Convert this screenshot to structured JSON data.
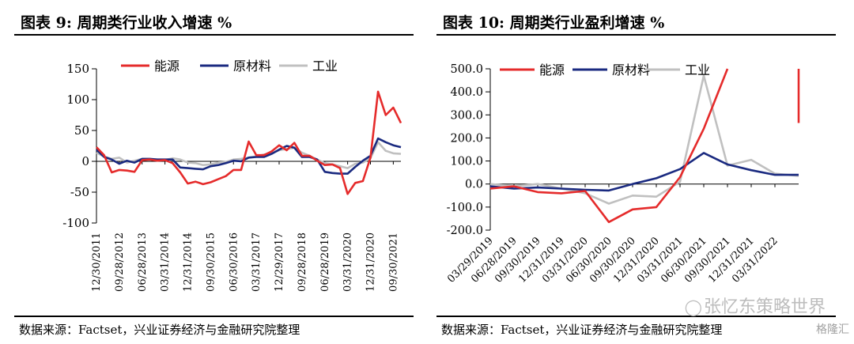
{
  "chart_data": [
    {
      "type": "line",
      "title": "图表 9:  周期类行业收入增速  %",
      "ylim": [
        -100,
        150
      ],
      "yticks": [
        150,
        100,
        50,
        0,
        -50,
        -100
      ],
      "ytick_labels": [
        "150",
        "100",
        "50",
        "0",
        "-50",
        "-100"
      ],
      "grid": false,
      "legend_position": "top",
      "x_tick_labels": [
        "12/30/2011",
        "09/28/2012",
        "06/28/2013",
        "03/31/2014",
        "12/31/2014",
        "09/30/2015",
        "06/30/2016",
        "03/31/2017",
        "12/29/2017",
        "09/28/2018",
        "06/28/2019",
        "03/31/2020",
        "12/31/2020",
        "09/30/2021"
      ],
      "series": [
        {
          "name": "能源",
          "color": "#e52b2b",
          "values": [
            23,
            10,
            -18,
            -14,
            -15,
            -17,
            2,
            3,
            1,
            2,
            -3,
            -18,
            -36,
            -33,
            -37,
            -34,
            -29,
            -24,
            -14,
            -14,
            32,
            10,
            10,
            16,
            26,
            18,
            30,
            9,
            9,
            1,
            -6,
            -5,
            -11,
            -53,
            -35,
            -32,
            6,
            113,
            75,
            87,
            62
          ]
        },
        {
          "name": "原材料",
          "color": "#1a2a80",
          "values": [
            19,
            7,
            3,
            -4,
            1,
            -2,
            4,
            4,
            3,
            3,
            3,
            -10,
            -11,
            -12,
            -13,
            -8,
            -6,
            -3,
            1,
            0,
            6,
            7,
            7,
            12,
            19,
            25,
            22,
            7,
            7,
            3,
            -17,
            -19,
            -20,
            -20,
            -9,
            1,
            9,
            37,
            31,
            26,
            23
          ]
        },
        {
          "name": "工业",
          "color": "#c0c0c0",
          "values": [
            14,
            8,
            4,
            6,
            -2,
            1,
            4,
            4,
            2,
            2,
            5,
            3,
            -2,
            -3,
            -6,
            -5,
            -2,
            -1,
            3,
            4,
            6,
            8,
            11,
            13,
            18,
            20,
            22,
            14,
            9,
            3,
            -3,
            -5,
            -8,
            -11,
            -4,
            -2,
            5,
            31,
            17,
            13,
            12
          ]
        }
      ]
    },
    {
      "type": "line",
      "title": "图表 10:  周期类行业盈利增速  %",
      "ylim": [
        -200,
        500
      ],
      "yticks": [
        500,
        400,
        300,
        200,
        100,
        0,
        -100,
        -200
      ],
      "ytick_labels": [
        "500.0",
        "400.0",
        "300.0",
        "200.0",
        "100.0",
        "0.0",
        "-100.0",
        "-200.0"
      ],
      "grid": false,
      "legend_position": "top",
      "x_tick_labels": [
        "03/29/2019",
        "06/28/2019",
        "09/30/2019",
        "12/31/2019",
        "03/31/2020",
        "06/30/2020",
        "09/30/2020",
        "12/31/2020",
        "03/31/2021",
        "06/30/2021",
        "09/30/2021",
        "12/31/2021",
        "03/31/2022"
      ],
      "series": [
        {
          "name": "能源",
          "color": "#e52b2b",
          "values": [
            -20,
            -10,
            -35,
            -40,
            -30,
            -165,
            -110,
            -100,
            30,
            240,
            500,
            null,
            null,
            null
          ],
          "extra_segment": {
            "x_index": 13,
            "y_from": 500,
            "y_to": 265
          }
        },
        {
          "name": "原材料",
          "color": "#1a2a80",
          "values": [
            -10,
            -20,
            -15,
            -20,
            -25,
            -28,
            0,
            25,
            65,
            135,
            85,
            60,
            40,
            40
          ]
        },
        {
          "name": "工业",
          "color": "#c0c0c0",
          "values": [
            0,
            -10,
            0,
            -20,
            -40,
            -85,
            -50,
            -55,
            10,
            470,
            80,
            105,
            45,
            35
          ]
        }
      ]
    }
  ],
  "sources": {
    "left": "数据来源：Factset，兴业证券经济与金融研究院整理",
    "right": "数据来源：Factset，兴业证券经济与金融研究院整理"
  },
  "watermark": {
    "text": "张忆东策略世界",
    "icon": "chat-bubble-icon",
    "badge": "格隆汇"
  }
}
